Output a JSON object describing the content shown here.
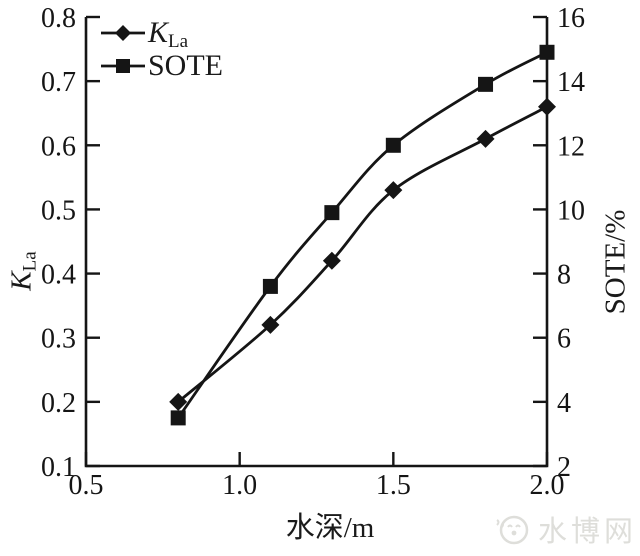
{
  "watermark": {
    "text": "水博网"
  },
  "axes": {
    "x_label": "水深/m",
    "y_left_label": {
      "main": "K",
      "sub": "La"
    },
    "y_right_label": "SOTE/%"
  },
  "legend": [
    {
      "marker": "diamond",
      "label_main": "K",
      "label_sub": "La"
    },
    {
      "marker": "square",
      "label": "SOTE"
    }
  ],
  "chart_data": {
    "type": "line",
    "x": [
      0.8,
      1.1,
      1.3,
      1.5,
      1.8,
      2.0
    ],
    "series": [
      {
        "name": "KLa",
        "axis": "left",
        "marker": "diamond",
        "values": [
          0.2,
          0.32,
          0.42,
          0.53,
          0.61,
          0.66
        ]
      },
      {
        "name": "SOTE",
        "axis": "right",
        "marker": "square",
        "values": [
          3.5,
          7.6,
          9.9,
          12.0,
          13.9,
          14.9
        ]
      }
    ],
    "x_axis": {
      "range": [
        0.5,
        2.0
      ],
      "ticks": [
        "0.5",
        "1.0",
        "1.5",
        "2.0"
      ]
    },
    "y_left": {
      "range": [
        0.1,
        0.8
      ],
      "ticks": [
        "0.1",
        "0.2",
        "0.3",
        "0.4",
        "0.5",
        "0.6",
        "0.7",
        "0.8"
      ]
    },
    "y_right": {
      "range": [
        2,
        16
      ],
      "ticks": [
        "2",
        "4",
        "6",
        "8",
        "10",
        "12",
        "14",
        "16"
      ]
    },
    "title": "",
    "xlabel": "水深/m",
    "ylabel_left": "KLa",
    "ylabel_right": "SOTE/%",
    "grid": false,
    "legend_position": "top-left-inside",
    "colors": {
      "line": "#151515",
      "background": "#ffffff",
      "watermark": "#dededa"
    }
  }
}
